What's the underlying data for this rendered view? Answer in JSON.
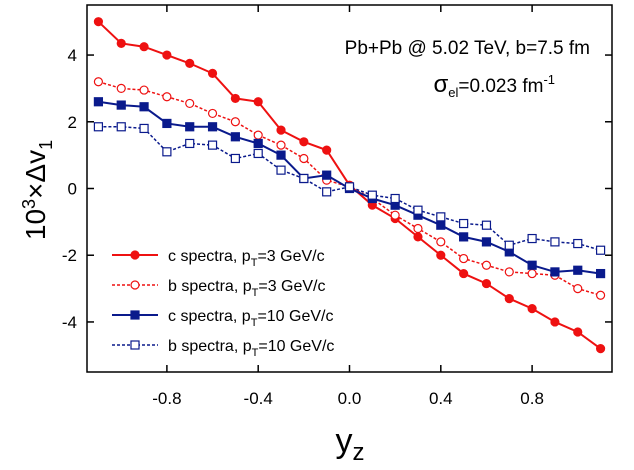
{
  "chart_data": {
    "type": "line",
    "annotations": [
      [
        "Pb+Pb @ 5.02 TeV, b=7.5 fm"
      ],
      [
        "σ",
        "el",
        "=0.023 fm",
        "-1"
      ]
    ],
    "xlabel": [
      "y",
      "z"
    ],
    "ylabel": [
      "10",
      "3",
      "×Δv",
      "1"
    ],
    "x": [
      -1.1,
      -1.0,
      -0.9,
      -0.8,
      -0.7,
      -0.6,
      -0.5,
      -0.4,
      -0.3,
      -0.2,
      -0.1,
      0.0,
      0.1,
      0.2,
      0.3,
      0.4,
      0.5,
      0.6,
      0.7,
      0.8,
      0.9,
      1.0,
      1.1
    ],
    "series": [
      {
        "name": [
          "c spectra, p",
          "T",
          "=3 GeV/c"
        ],
        "color": "#ee1111",
        "marker": "circle",
        "filled": true,
        "dash": false,
        "values": [
          5.0,
          4.35,
          4.25,
          4.0,
          3.75,
          3.45,
          2.7,
          2.6,
          1.75,
          1.4,
          1.15,
          0.1,
          -0.5,
          -0.9,
          -1.45,
          -2.0,
          -2.55,
          -2.85,
          -3.3,
          -3.6,
          -4.0,
          -4.3,
          -4.8
        ]
      },
      {
        "name": [
          "b spectra, p",
          "T",
          "=3 GeV/c"
        ],
        "color": "#ee1111",
        "marker": "circle",
        "filled": false,
        "dash": true,
        "values": [
          3.2,
          3.0,
          2.95,
          2.75,
          2.55,
          2.25,
          2.0,
          1.6,
          1.3,
          0.9,
          0.25,
          0.05,
          -0.3,
          -0.8,
          -1.2,
          -1.6,
          -2.1,
          -2.3,
          -2.5,
          -2.55,
          -2.6,
          -3.0,
          -3.2
        ]
      },
      {
        "name": [
          "c spectra, p",
          "T",
          "=10 GeV/c"
        ],
        "color": "#0a1a8c",
        "marker": "square",
        "filled": true,
        "dash": false,
        "values": [
          2.6,
          2.5,
          2.45,
          1.95,
          1.85,
          1.85,
          1.55,
          1.35,
          1.0,
          0.3,
          0.4,
          0.0,
          -0.3,
          -0.5,
          -0.8,
          -1.1,
          -1.45,
          -1.6,
          -1.9,
          -2.3,
          -2.5,
          -2.45,
          -2.55
        ]
      },
      {
        "name": [
          "b spectra, p",
          "T",
          "=10 GeV/c"
        ],
        "color": "#0a1a8c",
        "marker": "square",
        "filled": false,
        "dash": true,
        "values": [
          1.85,
          1.85,
          1.8,
          1.1,
          1.35,
          1.3,
          0.9,
          1.05,
          0.55,
          0.3,
          -0.1,
          0.05,
          -0.2,
          -0.3,
          -0.65,
          -0.85,
          -1.05,
          -1.1,
          -1.7,
          -1.5,
          -1.6,
          -1.65,
          -1.85
        ]
      }
    ],
    "xlim": [
      -1.15,
      1.15
    ],
    "xticks": [
      -0.8,
      -0.4,
      {
        "value": 0,
        "label": "0.0"
      },
      0.4,
      0.8
    ],
    "ylim": [
      -5.5,
      5.5
    ],
    "yticks": [
      -4,
      -2,
      0,
      2,
      4
    ],
    "legend": "lower-left"
  }
}
